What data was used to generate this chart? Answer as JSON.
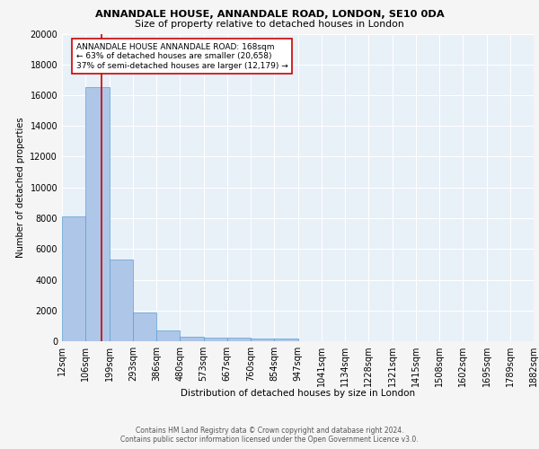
{
  "title1": "ANNANDALE HOUSE, ANNANDALE ROAD, LONDON, SE10 0DA",
  "title2": "Size of property relative to detached houses in London",
  "xlabel": "Distribution of detached houses by size in London",
  "ylabel": "Number of detached properties",
  "footer": "Contains HM Land Registry data © Crown copyright and database right 2024.\nContains public sector information licensed under the Open Government Licence v3.0.",
  "bin_labels": [
    "12sqm",
    "106sqm",
    "199sqm",
    "293sqm",
    "386sqm",
    "480sqm",
    "573sqm",
    "667sqm",
    "760sqm",
    "854sqm",
    "947sqm",
    "1041sqm",
    "1134sqm",
    "1228sqm",
    "1321sqm",
    "1415sqm",
    "1508sqm",
    "1602sqm",
    "1695sqm",
    "1789sqm",
    "1882sqm"
  ],
  "bar_heights": [
    8100,
    16500,
    5300,
    1850,
    700,
    310,
    240,
    215,
    200,
    165,
    0,
    0,
    0,
    0,
    0,
    0,
    0,
    0,
    0,
    0,
    0
  ],
  "bar_color": "#aec6e8",
  "bar_edge_color": "#5a9fd4",
  "property_line_color": "#cc0000",
  "annotation_text": "ANNANDALE HOUSE ANNANDALE ROAD: 168sqm\n← 63% of detached houses are smaller (20,658)\n37% of semi-detached houses are larger (12,179) →",
  "annotation_box_color": "#ffffff",
  "annotation_border_color": "#cc0000",
  "ylim": [
    0,
    20000
  ],
  "yticks": [
    0,
    2000,
    4000,
    6000,
    8000,
    10000,
    12000,
    14000,
    16000,
    18000,
    20000
  ],
  "background_color": "#e8f0f8",
  "grid_color": "#ffffff",
  "fig_bg": "#f5f5f5"
}
